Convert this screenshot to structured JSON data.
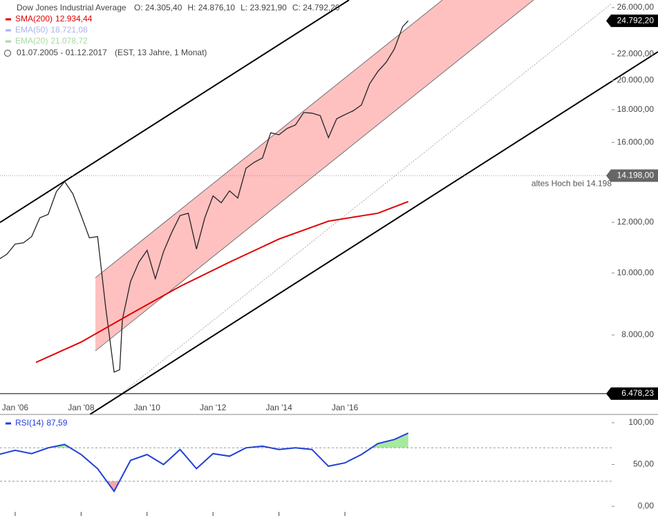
{
  "chart_data": [
    {
      "type": "line",
      "title": "Dow Jones Industrial Average",
      "ohlc": [
        "O: 24.305,40",
        "H: 24.876,10",
        "L: 23.921,90",
        "C: 24.792,20"
      ],
      "range": "01.07.2005 - 01.12.2017",
      "range_note": "(EST, 13 Jahre, 1 Monat)",
      "log_scale": true,
      "xlim": [
        2005.54,
        2024.09
      ],
      "xticks": [
        {
          "value": 2006,
          "label": "Jan '06"
        },
        {
          "value": 2008,
          "label": "Jan '08"
        },
        {
          "value": 2010,
          "label": "Jan '10"
        },
        {
          "value": 2012,
          "label": "Jan '12"
        },
        {
          "value": 2014,
          "label": "Jan '14"
        },
        {
          "value": 2016,
          "label": "Jan '16"
        }
      ],
      "ylim": [
        6010,
        26720
      ],
      "yticks": [
        {
          "value": 26000,
          "label": "26.000,00"
        },
        {
          "value": 22000,
          "label": "22.000,00"
        },
        {
          "value": 20000,
          "label": "20.000,00"
        },
        {
          "value": 18000,
          "label": "18.000,00"
        },
        {
          "value": 16000,
          "label": "16.000,00"
        },
        {
          "value": 12000,
          "label": "12.000,00"
        },
        {
          "value": 10000,
          "label": "10.000,00"
        },
        {
          "value": 8000,
          "label": "8.000,00"
        }
      ],
      "series": [
        {
          "name": "Dow Jones Industrial Average",
          "color": "#222222",
          "x": [
            2005.5,
            2005.75,
            2006,
            2006.25,
            2006.5,
            2006.75,
            2007,
            2007.25,
            2007.5,
            2007.75,
            2008,
            2008.25,
            2008.5,
            2008.75,
            2009,
            2009.17,
            2009.25,
            2009.5,
            2009.75,
            2010,
            2010.25,
            2010.5,
            2010.75,
            2011,
            2011.25,
            2011.5,
            2011.75,
            2012,
            2012.25,
            2012.5,
            2012.75,
            2013,
            2013.25,
            2013.5,
            2013.75,
            2014,
            2014.25,
            2014.5,
            2014.75,
            2015,
            2015.25,
            2015.5,
            2015.75,
            2016,
            2016.25,
            2016.5,
            2016.75,
            2017,
            2017.25,
            2017.5,
            2017.75,
            2017.92
          ],
          "values": [
            10500,
            10700,
            11100,
            11150,
            11400,
            12200,
            12350,
            13400,
            13900,
            13300,
            12300,
            11350,
            11400,
            8800,
            7000,
            7060,
            8450,
            9700,
            10400,
            10850,
            9800,
            10800,
            11580,
            12300,
            12400,
            10900,
            12200,
            13200,
            12880,
            13440,
            13100,
            14580,
            14900,
            15130,
            16570,
            16450,
            16830,
            17040,
            17820,
            17780,
            17620,
            16280,
            17420,
            17690,
            17930,
            18310,
            19760,
            20660,
            21350,
            22400,
            24270,
            24792.2
          ]
        },
        {
          "name": "SMA(200)",
          "color": "#e00000",
          "legend_value": 12934.44,
          "legend_label": "12.934,44",
          "x": [
            2006.63,
            2008,
            2009.5,
            2011,
            2012.5,
            2014,
            2015.5,
            2017,
            2017.92
          ],
          "values": [
            7250,
            7800,
            8630,
            9530,
            10400,
            11300,
            12050,
            12400,
            12934.44
          ]
        }
      ],
      "inactive_legend": [
        {
          "name": "EMA(50)",
          "color": "#aab4e8",
          "legend_value": 18721.08,
          "legend_label": "18.721,08"
        },
        {
          "name": "EMA(20)",
          "color": "#a8d8a0",
          "legend_value": 21078.72,
          "legend_label": "21.078,72"
        }
      ],
      "price_levels": [
        {
          "value": 24792.2,
          "label": "24.792,20",
          "style": "badge"
        },
        {
          "value": 14198,
          "label": "14.198,00",
          "style": "dotted",
          "annotation": "altes Hoch bei 14.198"
        },
        {
          "value": 6478.23,
          "label": "6.478,23",
          "style": "solid"
        }
      ]
    },
    {
      "type": "line",
      "xlim": [
        2005.54,
        2024.09
      ],
      "ylim": [
        -11.6,
        109.9
      ],
      "yticks": [
        {
          "value": 100,
          "label": "100,00"
        },
        {
          "value": 50,
          "label": "50,00"
        },
        {
          "value": 0,
          "label": "0,00"
        }
      ],
      "levels": [
        70,
        30
      ],
      "series": [
        {
          "name": "RSI(14)",
          "color": "#1f3fd8",
          "legend_label": "87,59",
          "x": [
            2005.5,
            2006,
            2006.5,
            2007,
            2007.5,
            2008,
            2008.5,
            2009,
            2009.5,
            2010,
            2010.5,
            2011,
            2011.5,
            2012,
            2012.5,
            2013,
            2013.5,
            2014,
            2014.5,
            2015,
            2015.5,
            2016,
            2016.5,
            2017,
            2017.5,
            2017.92
          ],
          "values": [
            62,
            67,
            63,
            70,
            74,
            62,
            45,
            18,
            55,
            62,
            50,
            68,
            45,
            63,
            60,
            70,
            72,
            68,
            70,
            68,
            48,
            52,
            62,
            75,
            80,
            87.59
          ]
        }
      ]
    }
  ]
}
